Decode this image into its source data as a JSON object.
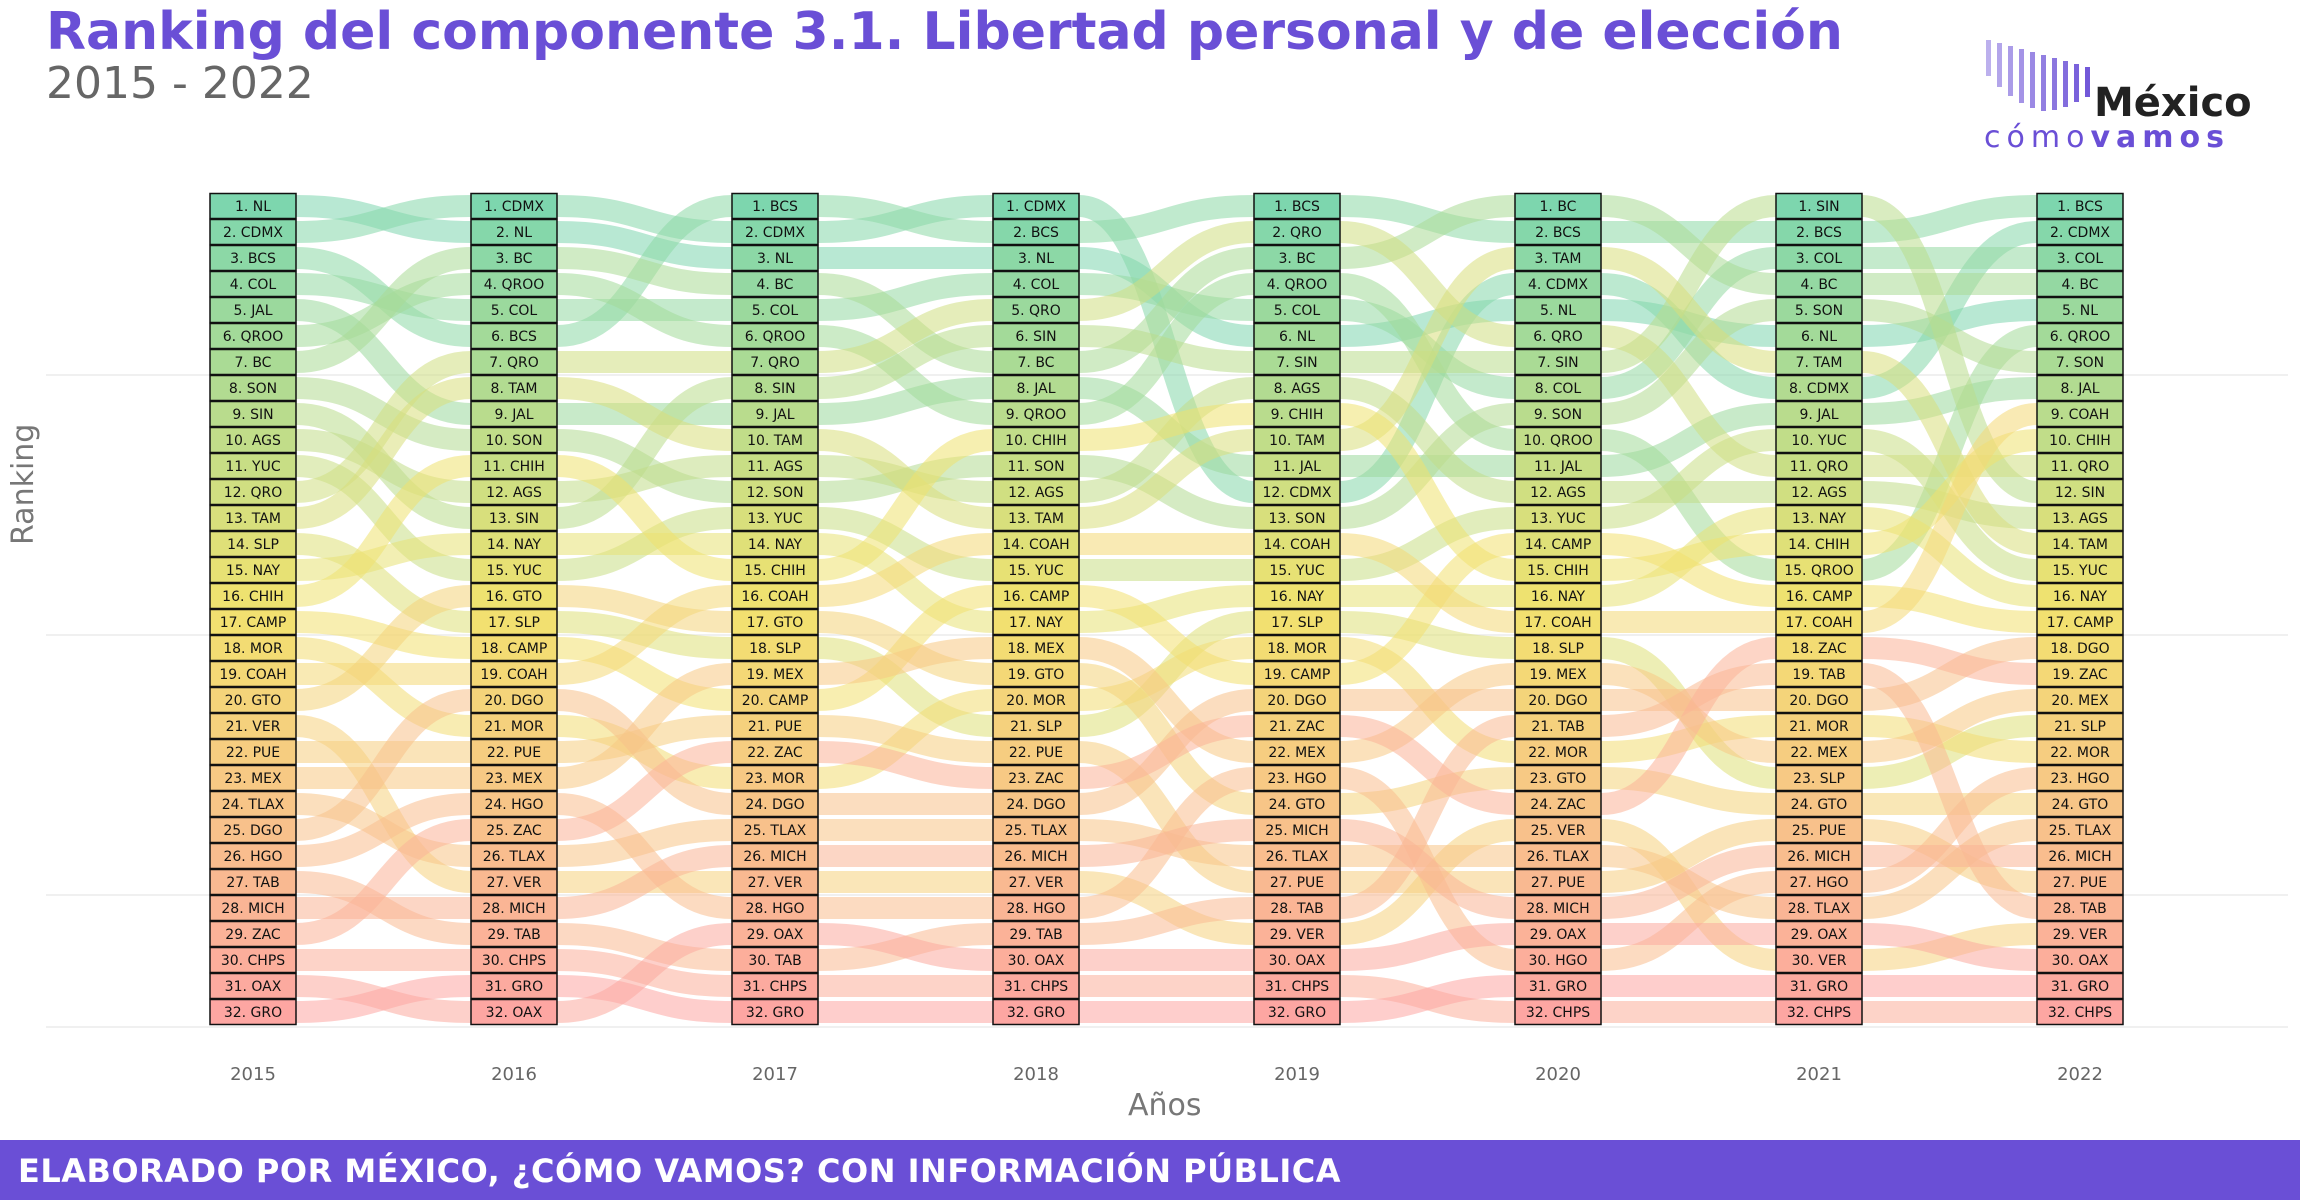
{
  "header": {
    "title": "Ranking del componente 3.1. Libertad personal y de elección",
    "subtitle": "2015 - 2022"
  },
  "logo": {
    "word1": "México",
    "word2_light": "cómo",
    "word2_bold": "vamos",
    "bar_color": "#6a4fd6"
  },
  "footer": {
    "text": "ELABORADO POR MÉXICO, ¿CÓMO VAMOS? CON INFORMACIÓN PÚBLICA",
    "color": "#6a4fd6"
  },
  "chart_data": {
    "type": "bump",
    "title": "Ranking del componente 3.1. Libertad personal y de elección",
    "subtitle": "2015 - 2022",
    "xlabel": "Años",
    "ylabel": "Ranking",
    "years": [
      "2015",
      "2016",
      "2017",
      "2018",
      "2019",
      "2020",
      "2021",
      "2022"
    ],
    "rank_range": [
      1,
      32
    ],
    "rankings": {
      "2015": [
        "NL",
        "CDMX",
        "BCS",
        "COL",
        "JAL",
        "QROO",
        "BC",
        "SON",
        "SIN",
        "AGS",
        "YUC",
        "QRO",
        "TAM",
        "SLP",
        "NAY",
        "CHIH",
        "CAMP",
        "MOR",
        "COAH",
        "GTO",
        "VER",
        "PUE",
        "MEX",
        "TLAX",
        "DGO",
        "HGO",
        "TAB",
        "MICH",
        "ZAC",
        "CHPS",
        "OAX",
        "GRO"
      ],
      "2016": [
        "CDMX",
        "NL",
        "BC",
        "QROO",
        "COL",
        "BCS",
        "QRO",
        "TAM",
        "JAL",
        "SON",
        "CHIH",
        "AGS",
        "SIN",
        "NAY",
        "YUC",
        "GTO",
        "SLP",
        "CAMP",
        "COAH",
        "DGO",
        "MOR",
        "PUE",
        "MEX",
        "HGO",
        "ZAC",
        "TLAX",
        "VER",
        "MICH",
        "TAB",
        "CHPS",
        "GRO",
        "OAX"
      ],
      "2017": [
        "BCS",
        "CDMX",
        "NL",
        "BC",
        "COL",
        "QROO",
        "QRO",
        "SIN",
        "JAL",
        "TAM",
        "AGS",
        "SON",
        "YUC",
        "NAY",
        "CHIH",
        "COAH",
        "GTO",
        "SLP",
        "MEX",
        "CAMP",
        "PUE",
        "ZAC",
        "MOR",
        "DGO",
        "TLAX",
        "MICH",
        "VER",
        "HGO",
        "OAX",
        "TAB",
        "CHPS",
        "GRO"
      ],
      "2018": [
        "CDMX",
        "BCS",
        "NL",
        "COL",
        "QRO",
        "SIN",
        "BC",
        "JAL",
        "QROO",
        "CHIH",
        "SON",
        "AGS",
        "TAM",
        "COAH",
        "YUC",
        "CAMP",
        "NAY",
        "MEX",
        "GTO",
        "MOR",
        "SLP",
        "PUE",
        "ZAC",
        "DGO",
        "TLAX",
        "MICH",
        "VER",
        "HGO",
        "TAB",
        "OAX",
        "CHPS",
        "GRO"
      ],
      "2019": [
        "BCS",
        "QRO",
        "BC",
        "QROO",
        "COL",
        "NL",
        "SIN",
        "AGS",
        "CHIH",
        "TAM",
        "JAL",
        "CDMX",
        "SON",
        "COAH",
        "YUC",
        "NAY",
        "SLP",
        "MOR",
        "CAMP",
        "DGO",
        "ZAC",
        "MEX",
        "HGO",
        "GTO",
        "MICH",
        "TLAX",
        "PUE",
        "TAB",
        "VER",
        "OAX",
        "CHPS",
        "GRO"
      ],
      "2020": [
        "BC",
        "BCS",
        "TAM",
        "CDMX",
        "NL",
        "QRO",
        "SIN",
        "COL",
        "SON",
        "QROO",
        "JAL",
        "AGS",
        "YUC",
        "CAMP",
        "CHIH",
        "NAY",
        "COAH",
        "SLP",
        "MEX",
        "DGO",
        "TAB",
        "MOR",
        "GTO",
        "ZAC",
        "VER",
        "TLAX",
        "PUE",
        "MICH",
        "OAX",
        "HGO",
        "GRO",
        "CHPS"
      ],
      "2021": [
        "SIN",
        "BCS",
        "COL",
        "BC",
        "SON",
        "NL",
        "TAM",
        "CDMX",
        "JAL",
        "YUC",
        "QRO",
        "AGS",
        "NAY",
        "CHIH",
        "QROO",
        "CAMP",
        "COAH",
        "ZAC",
        "TAB",
        "DGO",
        "MOR",
        "MEX",
        "SLP",
        "GTO",
        "PUE",
        "MICH",
        "HGO",
        "TLAX",
        "OAX",
        "VER",
        "GRO",
        "CHPS"
      ],
      "2022": [
        "BCS",
        "CDMX",
        "COL",
        "BC",
        "NL",
        "QROO",
        "SON",
        "JAL",
        "COAH",
        "CHIH",
        "QRO",
        "SIN",
        "AGS",
        "TAM",
        "YUC",
        "NAY",
        "CAMP",
        "DGO",
        "ZAC",
        "MEX",
        "SLP",
        "MOR",
        "HGO",
        "GTO",
        "TLAX",
        "MICH",
        "PUE",
        "TAB",
        "VER",
        "OAX",
        "GRO",
        "CHPS"
      ]
    },
    "color_scale": [
      "#7dd6ae",
      "#f2e26e",
      "#fda6a2"
    ],
    "grid": true
  }
}
